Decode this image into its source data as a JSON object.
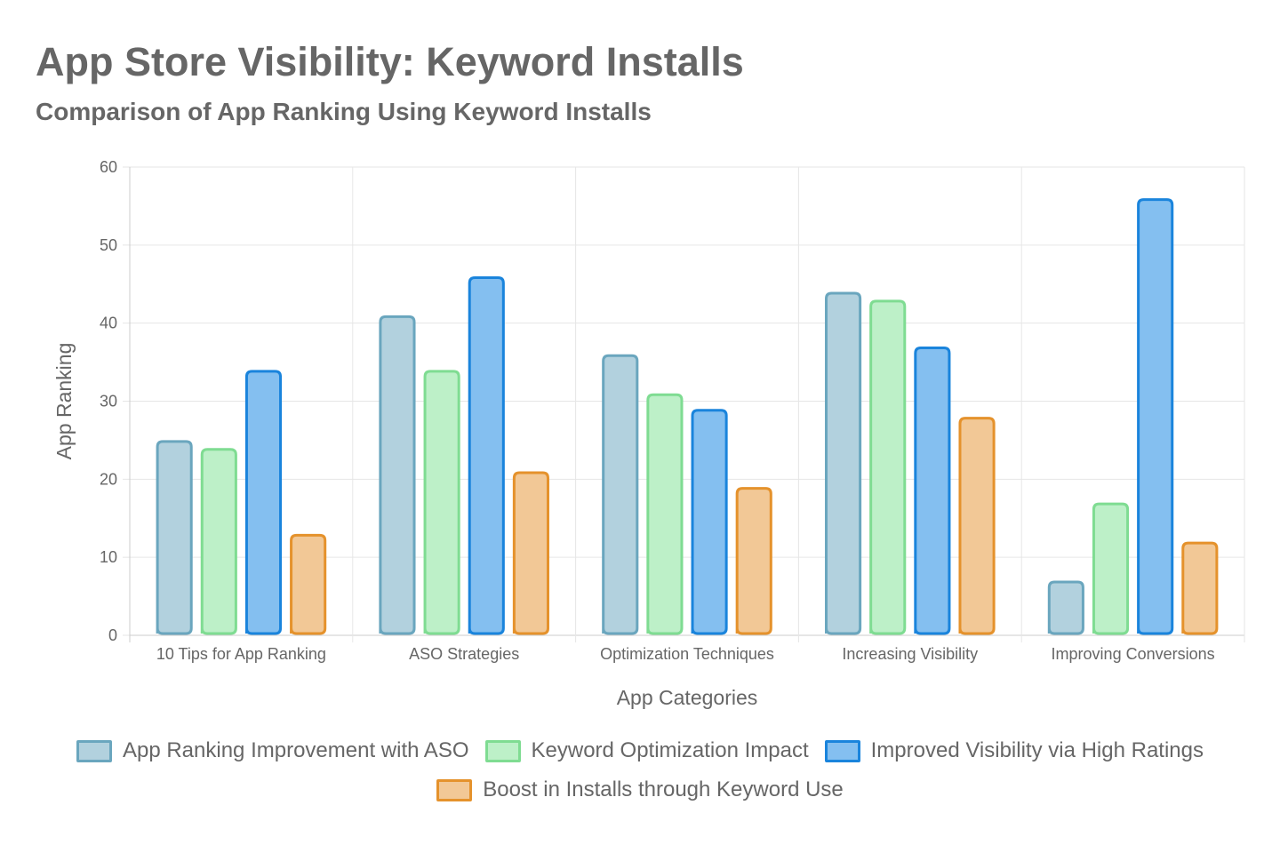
{
  "header": {
    "title": "App Store Visibility: Keyword Installs",
    "subtitle": "Comparison of App Ranking Using Keyword Installs"
  },
  "chart_data": {
    "type": "bar",
    "title": "App Store Visibility: Keyword Installs",
    "subtitle": "Comparison of App Ranking Using Keyword Installs",
    "xlabel": "App Categories",
    "ylabel": "App Ranking",
    "categories": [
      "10 Tips for App Ranking",
      "ASO Strategies",
      "Optimization Techniques",
      "Increasing Visibility",
      "Improving Conversions"
    ],
    "ylim": [
      0,
      60
    ],
    "yticks": [
      0,
      10,
      20,
      30,
      40,
      50,
      60
    ],
    "grid": true,
    "legend_position": "bottom",
    "series": [
      {
        "name": "App Ranking Improvement with ASO",
        "values": [
          25,
          41,
          36,
          44,
          7
        ],
        "fill": "#b2d1de",
        "stroke": "#6aa6be"
      },
      {
        "name": "Keyword Optimization Impact",
        "values": [
          24,
          34,
          31,
          43,
          17
        ],
        "fill": "#bdf0c8",
        "stroke": "#7fdc92"
      },
      {
        "name": "Improved Visibility via High Ratings",
        "values": [
          34,
          46,
          29,
          37,
          56
        ],
        "fill": "#84bff0",
        "stroke": "#1a84dc"
      },
      {
        "name": "Boost in Installs through Keyword Use",
        "values": [
          13,
          21,
          19,
          28,
          12
        ],
        "fill": "#f2c896",
        "stroke": "#e5922c"
      }
    ]
  }
}
